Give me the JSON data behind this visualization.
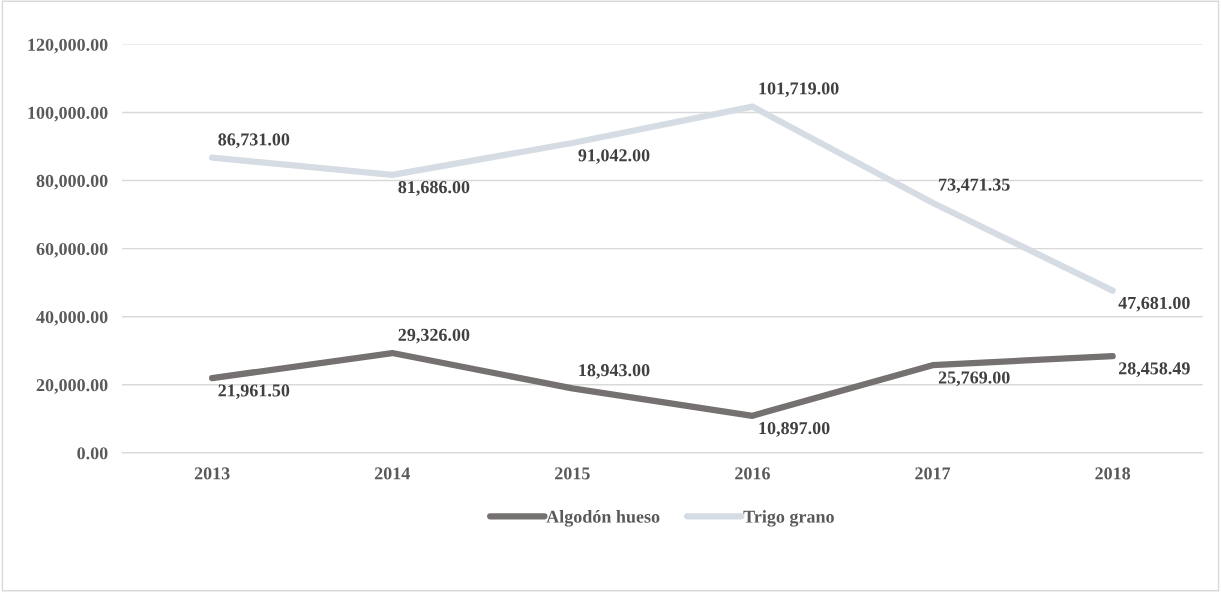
{
  "chart_data": {
    "type": "line",
    "categories": [
      "2013",
      "2014",
      "2015",
      "2016",
      "2017",
      "2018"
    ],
    "series": [
      {
        "name": "Algodón hueso",
        "color": "#767171",
        "values": [
          21961.5,
          29326.0,
          18943.0,
          10897.0,
          25769.0,
          28458.49
        ],
        "value_labels": [
          "21,961.50",
          "29,326.00",
          "18,943.00",
          "10,897.00",
          "25,769.00",
          "28,458.49"
        ]
      },
      {
        "name": "Trigo grano",
        "color": "#d6dce4",
        "values": [
          86731.0,
          81686.0,
          91042.0,
          101719.0,
          73471.35,
          47681.0
        ],
        "value_labels": [
          "86,731.00",
          "81,686.00",
          "91,042.00",
          "101,719.00",
          "73,471.35",
          "47,681.00"
        ]
      }
    ],
    "ylim": [
      0,
      120000
    ],
    "yticks": [
      {
        "value": 0,
        "label": "0.00"
      },
      {
        "value": 20000,
        "label": "20,000.00"
      },
      {
        "value": 40000,
        "label": "40,000.00"
      },
      {
        "value": 60000,
        "label": "60,000.00"
      },
      {
        "value": 80000,
        "label": "80,000.00"
      },
      {
        "value": 100000,
        "label": "100,000.00"
      },
      {
        "value": 120000,
        "label": "120,000.00"
      }
    ],
    "grid": "y",
    "legend": "bottom",
    "marker": "none",
    "line_style": "solid"
  }
}
